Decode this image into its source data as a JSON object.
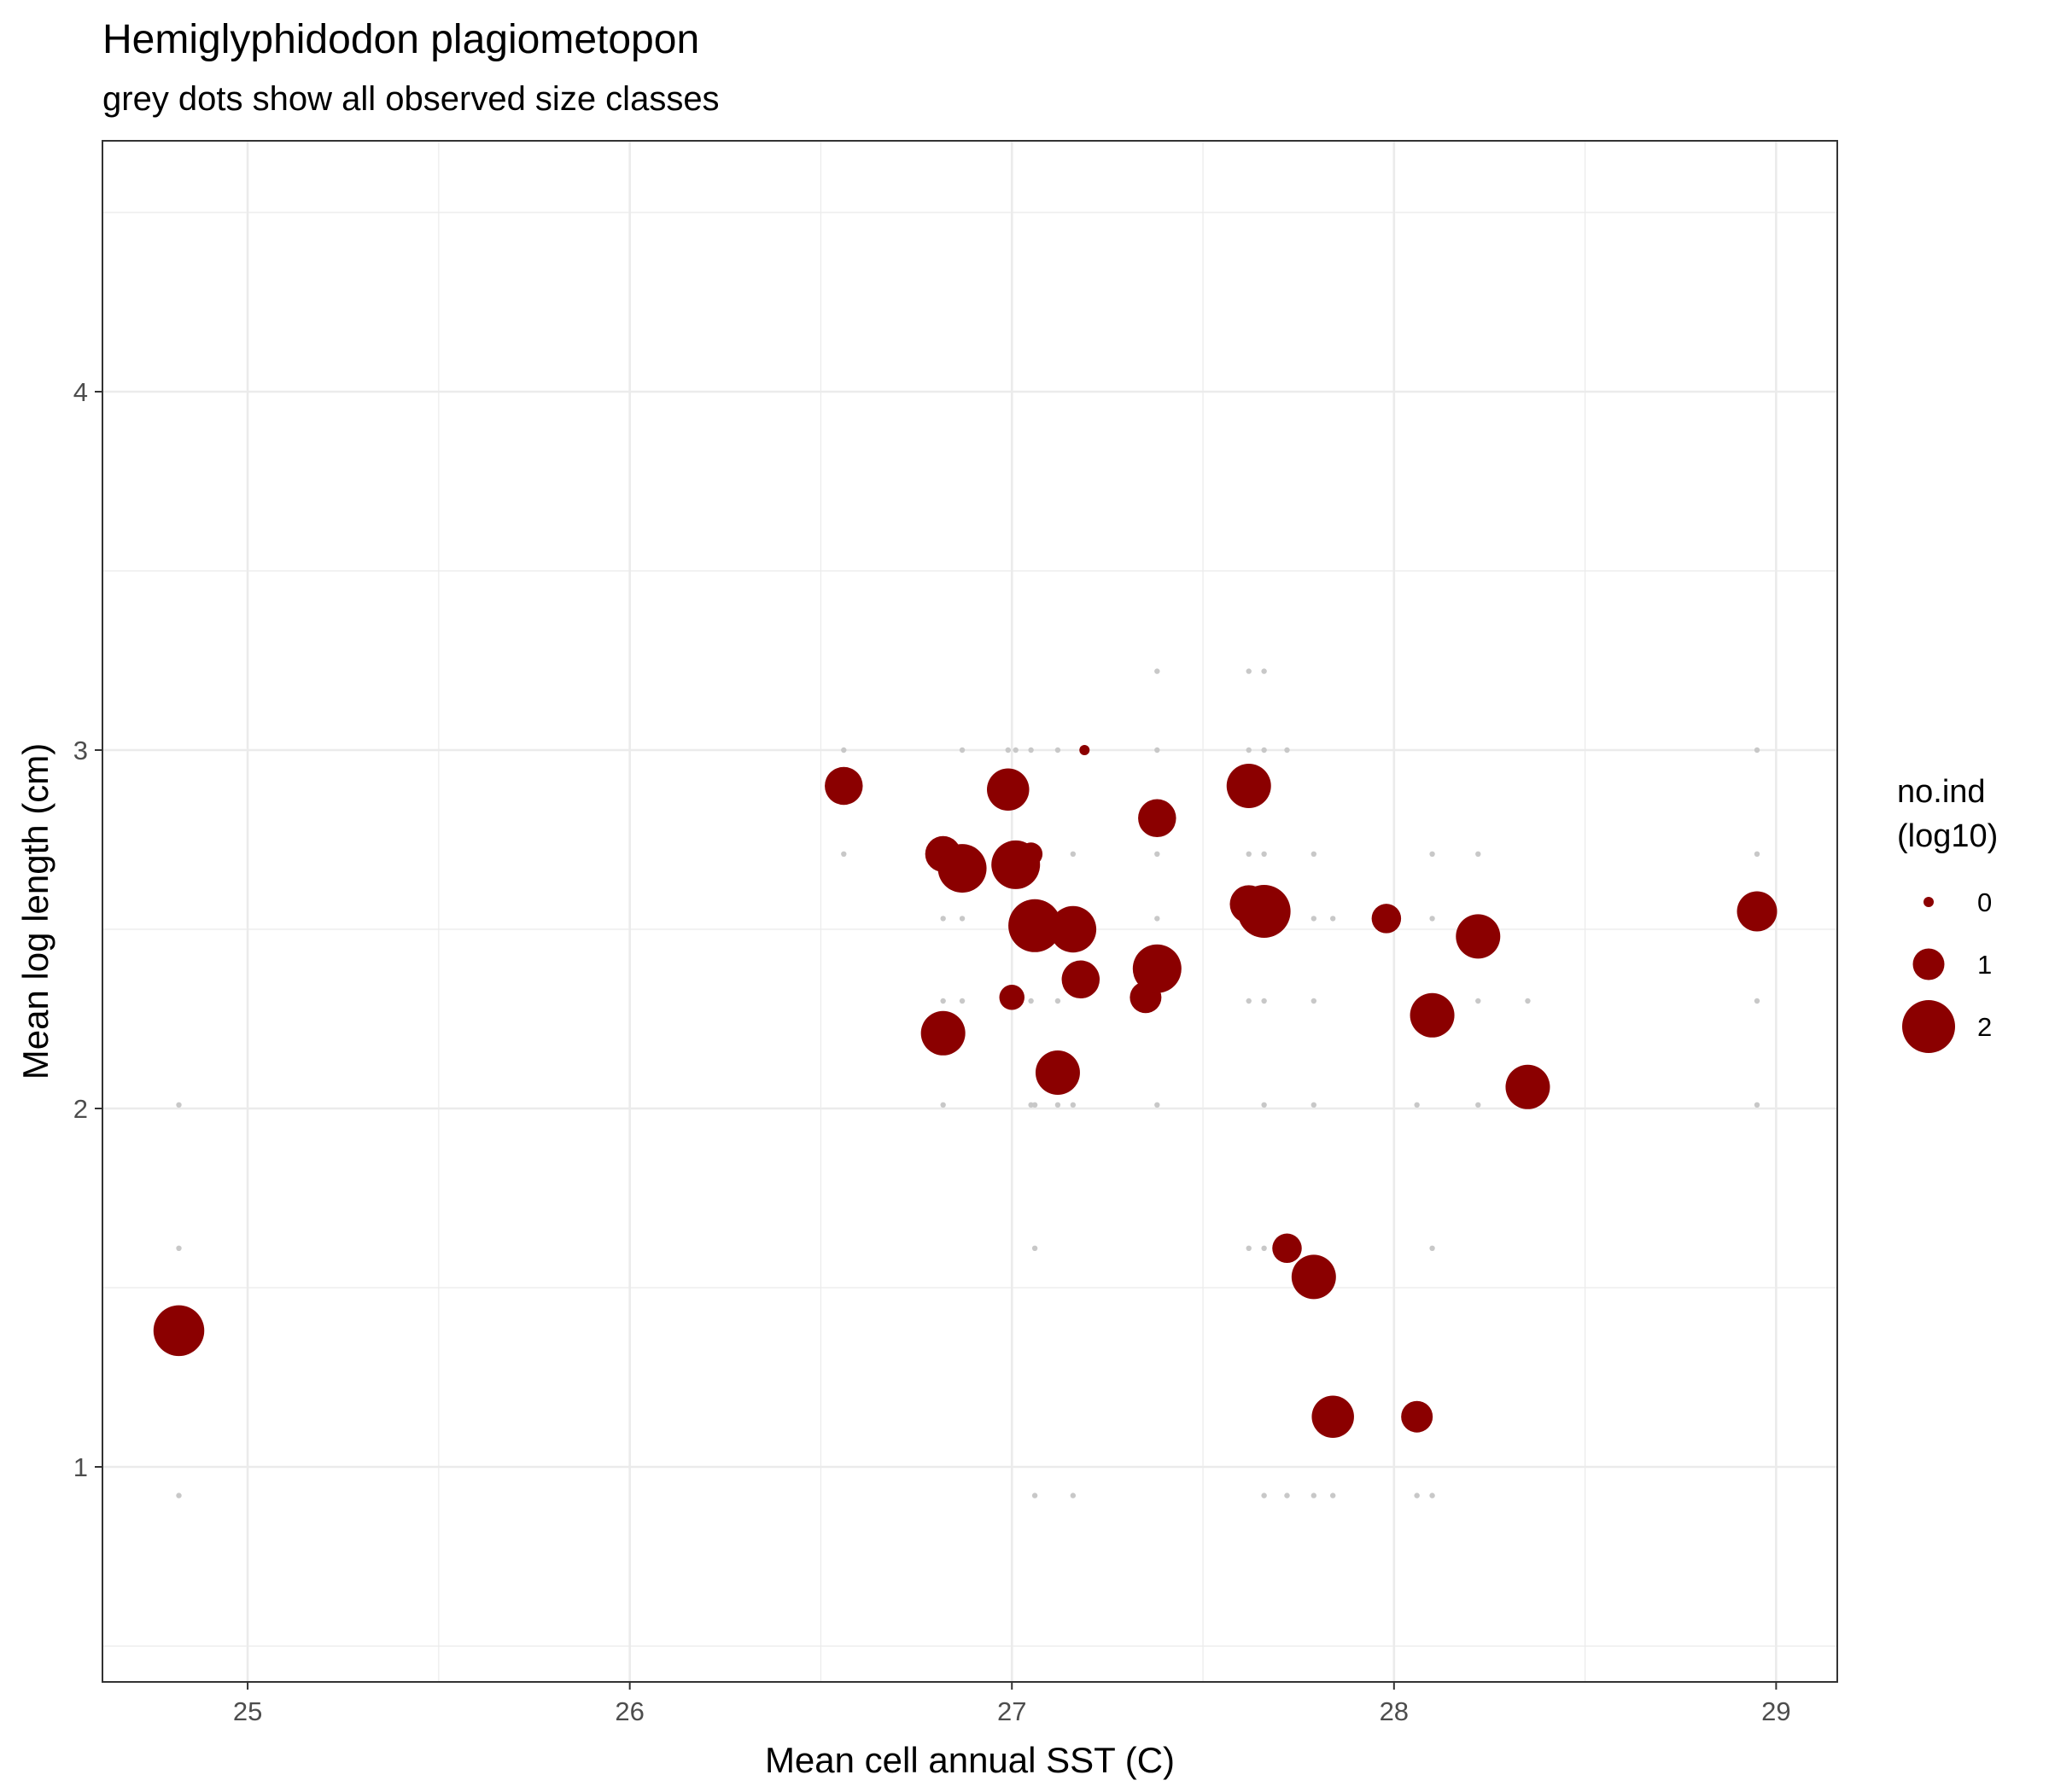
{
  "chart_data": {
    "type": "scatter",
    "title": "Hemiglyphidodon plagiometopon",
    "subtitle": "grey dots show all observed size classes",
    "xlabel": "Mean cell annual SST (C)",
    "ylabel": "Mean log length (cm)",
    "xlim": [
      24.62,
      29.16
    ],
    "ylim": [
      0.4,
      4.7
    ],
    "xticks": [
      25,
      26,
      27,
      28,
      29
    ],
    "yticks": [
      1,
      2,
      3,
      4
    ],
    "xticks_minor": [
      25.5,
      26.5,
      27.5,
      28.5
    ],
    "yticks_minor": [
      0.5,
      1.5,
      2.5,
      3.5,
      4.5
    ],
    "grid": true,
    "legend": {
      "title_line1": "no.ind",
      "title_line2": "(log10)",
      "position": "right",
      "entries": [
        {
          "label": "0",
          "value": 0
        },
        {
          "label": "1",
          "value": 1
        },
        {
          "label": "2",
          "value": 2
        }
      ]
    },
    "colors": {
      "mean_points": "#8b0000",
      "size_class_dots": "#c8c8c8",
      "grid": "#ebebeb",
      "panel_border": "#333333"
    },
    "series": [
      {
        "name": "mean log length",
        "points": [
          {
            "x": 24.82,
            "y": 1.38,
            "log10_n": 1.9
          },
          {
            "x": 26.56,
            "y": 2.9,
            "log10_n": 1.3
          },
          {
            "x": 26.82,
            "y": 2.71,
            "log10_n": 1.2
          },
          {
            "x": 26.82,
            "y": 2.21,
            "log10_n": 1.6
          },
          {
            "x": 26.87,
            "y": 2.67,
            "log10_n": 1.8
          },
          {
            "x": 26.99,
            "y": 2.89,
            "log10_n": 1.5
          },
          {
            "x": 27.0,
            "y": 2.31,
            "log10_n": 0.7
          },
          {
            "x": 27.01,
            "y": 2.68,
            "log10_n": 1.8
          },
          {
            "x": 27.05,
            "y": 2.71,
            "log10_n": 0.6
          },
          {
            "x": 27.06,
            "y": 2.51,
            "log10_n": 2.0
          },
          {
            "x": 27.12,
            "y": 2.1,
            "log10_n": 1.6
          },
          {
            "x": 27.16,
            "y": 2.5,
            "log10_n": 1.7
          },
          {
            "x": 27.18,
            "y": 2.36,
            "log10_n": 1.3
          },
          {
            "x": 27.19,
            "y": 3.0,
            "log10_n": 0.0
          },
          {
            "x": 27.35,
            "y": 2.31,
            "log10_n": 1.0
          },
          {
            "x": 27.38,
            "y": 2.81,
            "log10_n": 1.3
          },
          {
            "x": 27.38,
            "y": 2.39,
            "log10_n": 1.8
          },
          {
            "x": 27.62,
            "y": 2.9,
            "log10_n": 1.6
          },
          {
            "x": 27.62,
            "y": 2.57,
            "log10_n": 1.3
          },
          {
            "x": 27.66,
            "y": 2.55,
            "log10_n": 2.0
          },
          {
            "x": 27.72,
            "y": 1.61,
            "log10_n": 0.9
          },
          {
            "x": 27.79,
            "y": 1.53,
            "log10_n": 1.6
          },
          {
            "x": 27.84,
            "y": 1.14,
            "log10_n": 1.5
          },
          {
            "x": 27.98,
            "y": 2.53,
            "log10_n": 0.9
          },
          {
            "x": 28.06,
            "y": 1.14,
            "log10_n": 1.0
          },
          {
            "x": 28.1,
            "y": 2.26,
            "log10_n": 1.6
          },
          {
            "x": 28.22,
            "y": 2.48,
            "log10_n": 1.6
          },
          {
            "x": 28.35,
            "y": 2.06,
            "log10_n": 1.6
          },
          {
            "x": 28.95,
            "y": 2.55,
            "log10_n": 1.4
          }
        ]
      },
      {
        "name": "observed size classes",
        "points": [
          {
            "x": 24.82,
            "y": 2.01
          },
          {
            "x": 24.82,
            "y": 1.61
          },
          {
            "x": 24.82,
            "y": 0.92
          },
          {
            "x": 26.56,
            "y": 3.0
          },
          {
            "x": 26.56,
            "y": 2.71
          },
          {
            "x": 26.82,
            "y": 2.53
          },
          {
            "x": 26.82,
            "y": 2.3
          },
          {
            "x": 26.82,
            "y": 2.01
          },
          {
            "x": 26.87,
            "y": 3.0
          },
          {
            "x": 26.87,
            "y": 2.53
          },
          {
            "x": 26.87,
            "y": 2.3
          },
          {
            "x": 26.99,
            "y": 3.0
          },
          {
            "x": 27.01,
            "y": 3.0
          },
          {
            "x": 27.05,
            "y": 3.0
          },
          {
            "x": 27.05,
            "y": 2.3
          },
          {
            "x": 27.05,
            "y": 2.01
          },
          {
            "x": 27.06,
            "y": 2.01
          },
          {
            "x": 27.06,
            "y": 1.61
          },
          {
            "x": 27.06,
            "y": 0.92
          },
          {
            "x": 27.12,
            "y": 3.0
          },
          {
            "x": 27.12,
            "y": 2.3
          },
          {
            "x": 27.12,
            "y": 2.01
          },
          {
            "x": 27.16,
            "y": 2.71
          },
          {
            "x": 27.16,
            "y": 2.01
          },
          {
            "x": 27.16,
            "y": 0.92
          },
          {
            "x": 27.38,
            "y": 3.22
          },
          {
            "x": 27.38,
            "y": 3.0
          },
          {
            "x": 27.38,
            "y": 2.71
          },
          {
            "x": 27.38,
            "y": 2.53
          },
          {
            "x": 27.38,
            "y": 2.01
          },
          {
            "x": 27.62,
            "y": 3.22
          },
          {
            "x": 27.62,
            "y": 3.0
          },
          {
            "x": 27.62,
            "y": 2.71
          },
          {
            "x": 27.62,
            "y": 2.3
          },
          {
            "x": 27.62,
            "y": 1.61
          },
          {
            "x": 27.66,
            "y": 3.22
          },
          {
            "x": 27.66,
            "y": 3.0
          },
          {
            "x": 27.66,
            "y": 2.71
          },
          {
            "x": 27.66,
            "y": 2.3
          },
          {
            "x": 27.66,
            "y": 2.01
          },
          {
            "x": 27.66,
            "y": 1.61
          },
          {
            "x": 27.66,
            "y": 0.92
          },
          {
            "x": 27.72,
            "y": 3.0
          },
          {
            "x": 27.72,
            "y": 0.92
          },
          {
            "x": 27.79,
            "y": 2.71
          },
          {
            "x": 27.79,
            "y": 2.53
          },
          {
            "x": 27.79,
            "y": 2.3
          },
          {
            "x": 27.79,
            "y": 2.01
          },
          {
            "x": 27.79,
            "y": 0.92
          },
          {
            "x": 27.84,
            "y": 2.53
          },
          {
            "x": 27.84,
            "y": 0.92
          },
          {
            "x": 28.06,
            "y": 2.01
          },
          {
            "x": 28.06,
            "y": 0.92
          },
          {
            "x": 28.1,
            "y": 2.71
          },
          {
            "x": 28.1,
            "y": 2.53
          },
          {
            "x": 28.1,
            "y": 1.61
          },
          {
            "x": 28.1,
            "y": 0.92
          },
          {
            "x": 28.22,
            "y": 2.71
          },
          {
            "x": 28.22,
            "y": 2.3
          },
          {
            "x": 28.22,
            "y": 2.01
          },
          {
            "x": 28.35,
            "y": 2.3
          },
          {
            "x": 28.95,
            "y": 3.0
          },
          {
            "x": 28.95,
            "y": 2.71
          },
          {
            "x": 28.95,
            "y": 2.3
          },
          {
            "x": 28.95,
            "y": 2.01
          }
        ]
      }
    ]
  }
}
